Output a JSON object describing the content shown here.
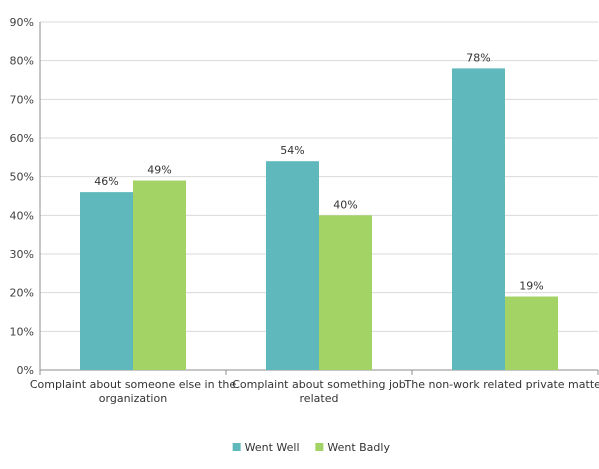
{
  "chart_data": {
    "type": "bar",
    "categories": [
      [
        "Complaint about someone else in the",
        "organization"
      ],
      [
        "Complaint about something job",
        "related"
      ],
      [
        "The non-work related private matter"
      ]
    ],
    "series": [
      {
        "name": "Went Well",
        "values": [
          46,
          54,
          78
        ],
        "labels": [
          "46%",
          "54%",
          "78%"
        ],
        "color": "#5fb8bc"
      },
      {
        "name": "Went Badly",
        "values": [
          49,
          40,
          19
        ],
        "labels": [
          "49%",
          "40%",
          "19%"
        ],
        "color": "#a2d364"
      }
    ],
    "y_ticks": [
      "0%",
      "10%",
      "20%",
      "30%",
      "40%",
      "50%",
      "60%",
      "70%",
      "80%",
      "90%"
    ],
    "ylim": [
      0,
      90
    ],
    "y_step": 10,
    "grid": "horizontal",
    "legend_position": "bottom",
    "title": "",
    "xlabel": "",
    "ylabel": ""
  }
}
